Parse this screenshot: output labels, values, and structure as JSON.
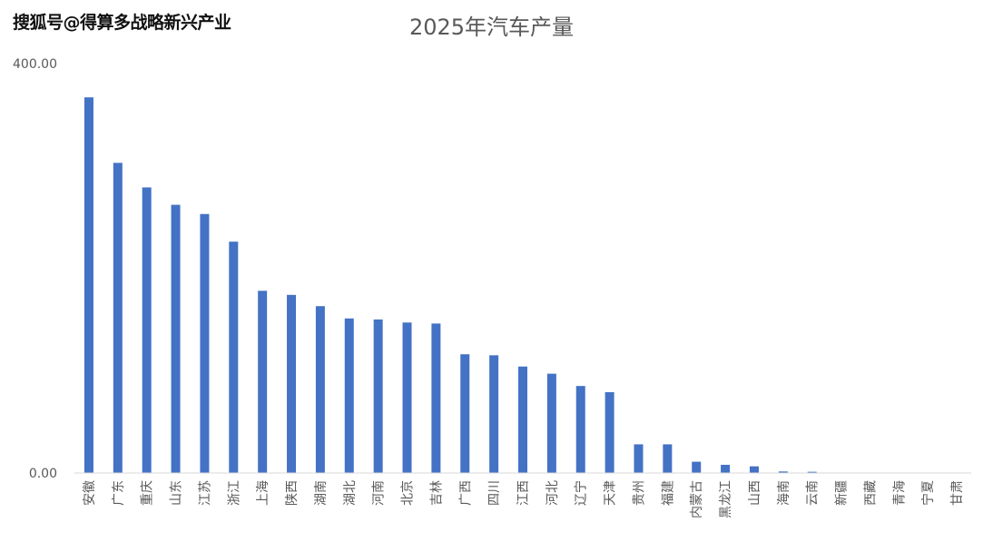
{
  "watermark": "搜狐号@得算多战略新兴产业",
  "chart_data": {
    "type": "bar",
    "title": "2025年汽车产量",
    "xlabel": "",
    "ylabel": "",
    "ylim": [
      0,
      400
    ],
    "ytick_labels": [
      "0.00",
      "400.00"
    ],
    "grid": false,
    "legend": "none",
    "bar_color": "#4472C4",
    "categories": [
      "安徽",
      "广东",
      "重庆",
      "山东",
      "江苏",
      "浙江",
      "上海",
      "陕西",
      "湖南",
      "湖北",
      "河南",
      "北京",
      "吉林",
      "广西",
      "四川",
      "江西",
      "河北",
      "辽宁",
      "天津",
      "贵州",
      "福建",
      "内蒙古",
      "黑龙江",
      "山西",
      "海南",
      "云南",
      "新疆",
      "西藏",
      "青海",
      "宁夏",
      "甘肃"
    ],
    "values": [
      367,
      303,
      279,
      262,
      253,
      226,
      178,
      174,
      163,
      151,
      150,
      147,
      146,
      116,
      115,
      104,
      97,
      85,
      79,
      28,
      28,
      11,
      8,
      6.5,
      1.5,
      1.2,
      0,
      0,
      0,
      0,
      0
    ]
  }
}
